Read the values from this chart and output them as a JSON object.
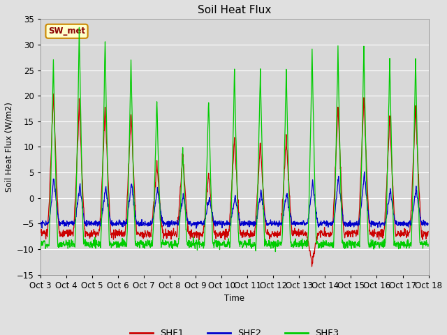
{
  "title": "Soil Heat Flux",
  "ylabel": "Soil Heat Flux (W/m2)",
  "xlabel": "Time",
  "ylim": [
    -15,
    35
  ],
  "xlim": [
    0,
    360
  ],
  "figsize": [
    6.4,
    4.8
  ],
  "dpi": 100,
  "background_color": "#e0e0e0",
  "plot_bg_color": "#d8d8d8",
  "shf1_color": "#cc0000",
  "shf2_color": "#0000cc",
  "shf3_color": "#00cc00",
  "legend_label": "SW_met",
  "legend_bg": "#ffffcc",
  "legend_border": "#cc8800",
  "x_tick_labels": [
    "Oct 3",
    "Oct 4",
    "Oct 5",
    "Oct 6",
    "Oct 7",
    "Oct 8",
    "Oct 9",
    "Oct 10",
    "Oct 11",
    "Oct 12",
    "Oct 13",
    "Oct 14",
    "Oct 15",
    "Oct 16",
    "Oct 17",
    "Oct 18"
  ],
  "x_tick_positions": [
    0,
    24,
    48,
    72,
    96,
    120,
    144,
    168,
    192,
    216,
    240,
    264,
    288,
    312,
    336,
    360
  ],
  "shf1_day_peaks": [
    21,
    18.5,
    18,
    17,
    7,
    9,
    5,
    12,
    11,
    12,
    -13,
    18,
    20,
    16,
    18
  ],
  "shf2_day_peaks": [
    4,
    2.5,
    2,
    3,
    2,
    0.5,
    0,
    0.5,
    1.5,
    1,
    3,
    4,
    5,
    1.5,
    2
  ],
  "shf3_day_peaks": [
    27,
    33,
    30.5,
    27,
    19.5,
    9.5,
    19,
    25,
    25,
    25,
    29,
    29,
    30,
    27,
    27
  ],
  "shf1_night_min": -7,
  "shf2_night_min": -5,
  "shf3_night_min": -9,
  "n_days": 15,
  "pts_per_day": 96
}
